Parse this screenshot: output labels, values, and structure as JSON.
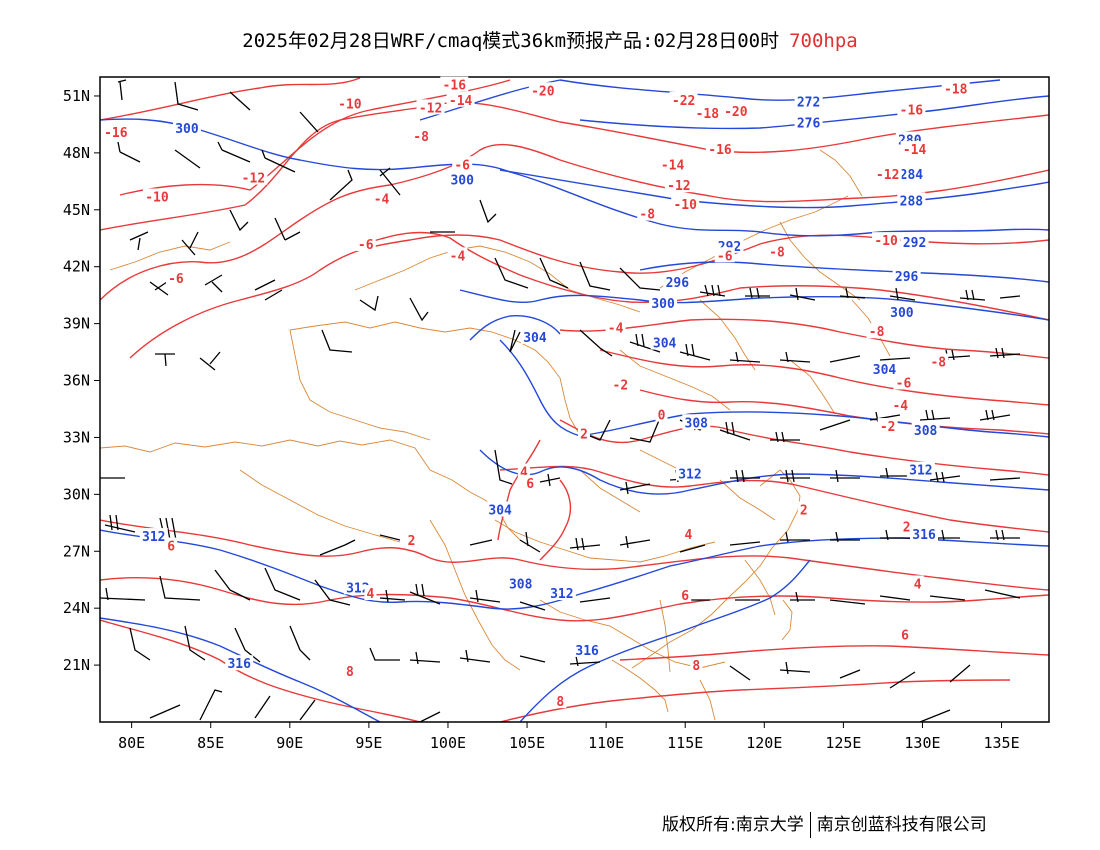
{
  "title": {
    "main": "2025年02月28日WRF/cmaq模式36km预报产品:02月28日00时",
    "level": "700hpa"
  },
  "colors": {
    "temperature": "#e8393a",
    "height": "#2448d8",
    "border": "#d9893a",
    "wind": "#000000"
  },
  "map": {
    "lon_range": [
      78,
      138
    ],
    "lat_range": [
      18,
      52
    ],
    "x_ticks": [
      "80E",
      "85E",
      "90E",
      "95E",
      "100E",
      "105E",
      "110E",
      "115E",
      "120E",
      "125E",
      "130E",
      "135E"
    ],
    "y_ticks": [
      "51N",
      "48N",
      "45N",
      "42N",
      "39N",
      "36N",
      "33N",
      "30N",
      "27N",
      "24N",
      "21N"
    ],
    "height_labels": [
      {
        "text": "300",
        "lon": 83.5,
        "lat": 49.3
      },
      {
        "text": "300",
        "lon": 100.9,
        "lat": 46.6
      },
      {
        "text": "304",
        "lon": 105.5,
        "lat": 38.3
      },
      {
        "text": "304",
        "lon": 113.7,
        "lat": 38.0
      },
      {
        "text": "300",
        "lon": 113.6,
        "lat": 40.1
      },
      {
        "text": "296",
        "lon": 114.5,
        "lat": 41.2
      },
      {
        "text": "292",
        "lon": 117.8,
        "lat": 43.1
      },
      {
        "text": "272",
        "lon": 122.8,
        "lat": 50.7
      },
      {
        "text": "276",
        "lon": 122.8,
        "lat": 49.6
      },
      {
        "text": "280",
        "lon": 129.2,
        "lat": 48.7
      },
      {
        "text": "284",
        "lon": 129.3,
        "lat": 46.9
      },
      {
        "text": "288",
        "lon": 129.3,
        "lat": 45.5
      },
      {
        "text": "292",
        "lon": 129.5,
        "lat": 43.3
      },
      {
        "text": "296",
        "lon": 129.0,
        "lat": 41.5
      },
      {
        "text": "300",
        "lon": 128.7,
        "lat": 39.6
      },
      {
        "text": "304",
        "lon": 127.6,
        "lat": 36.6
      },
      {
        "text": "308",
        "lon": 115.7,
        "lat": 33.8
      },
      {
        "text": "308",
        "lon": 130.2,
        "lat": 33.4
      },
      {
        "text": "312",
        "lon": 115.3,
        "lat": 31.1
      },
      {
        "text": "312",
        "lon": 129.9,
        "lat": 31.3
      },
      {
        "text": "316",
        "lon": 130.1,
        "lat": 27.9
      },
      {
        "text": "304",
        "lon": 103.3,
        "lat": 29.2
      },
      {
        "text": "308",
        "lon": 104.6,
        "lat": 25.3
      },
      {
        "text": "312",
        "lon": 107.2,
        "lat": 24.8
      },
      {
        "text": "312",
        "lon": 81.4,
        "lat": 27.8
      },
      {
        "text": "312",
        "lon": 94.3,
        "lat": 25.1
      },
      {
        "text": "316",
        "lon": 108.8,
        "lat": 21.8
      },
      {
        "text": "316",
        "lon": 86.8,
        "lat": 21.1
      }
    ],
    "temp_labels": [
      {
        "text": "-16",
        "lon": 79.0,
        "lat": 49.1
      },
      {
        "text": "-10",
        "lon": 93.8,
        "lat": 50.6
      },
      {
        "text": "-16",
        "lon": 100.4,
        "lat": 51.6
      },
      {
        "text": "-14",
        "lon": 100.8,
        "lat": 50.8
      },
      {
        "text": "-12",
        "lon": 98.9,
        "lat": 50.4
      },
      {
        "text": "-8",
        "lon": 98.3,
        "lat": 48.9
      },
      {
        "text": "-6",
        "lon": 100.9,
        "lat": 47.4
      },
      {
        "text": "-10",
        "lon": 81.6,
        "lat": 45.7
      },
      {
        "text": "-12",
        "lon": 87.7,
        "lat": 46.7
      },
      {
        "text": "-4",
        "lon": 95.8,
        "lat": 45.6
      },
      {
        "text": "-6",
        "lon": 94.8,
        "lat": 43.2
      },
      {
        "text": "-4",
        "lon": 100.6,
        "lat": 42.6
      },
      {
        "text": "-6",
        "lon": 82.8,
        "lat": 41.4
      },
      {
        "text": "-20",
        "lon": 106.0,
        "lat": 51.3
      },
      {
        "text": "-22",
        "lon": 114.9,
        "lat": 50.8
      },
      {
        "text": "-18",
        "lon": 116.4,
        "lat": 50.1
      },
      {
        "text": "-20",
        "lon": 118.2,
        "lat": 50.2
      },
      {
        "text": "-16",
        "lon": 117.2,
        "lat": 48.2
      },
      {
        "text": "-14",
        "lon": 114.2,
        "lat": 47.4
      },
      {
        "text": "-12",
        "lon": 114.6,
        "lat": 46.3
      },
      {
        "text": "-10",
        "lon": 115.0,
        "lat": 45.3
      },
      {
        "text": "-8",
        "lon": 112.6,
        "lat": 44.8
      },
      {
        "text": "-6",
        "lon": 117.5,
        "lat": 42.6
      },
      {
        "text": "-8",
        "lon": 120.8,
        "lat": 42.8
      },
      {
        "text": "-18",
        "lon": 132.1,
        "lat": 51.4
      },
      {
        "text": "-16",
        "lon": 129.3,
        "lat": 50.3
      },
      {
        "text": "-14",
        "lon": 129.5,
        "lat": 48.2
      },
      {
        "text": "-12",
        "lon": 127.8,
        "lat": 46.9
      },
      {
        "text": "-10",
        "lon": 127.7,
        "lat": 43.4
      },
      {
        "text": "-8",
        "lon": 127.1,
        "lat": 38.6
      },
      {
        "text": "-8",
        "lon": 131.0,
        "lat": 37.0
      },
      {
        "text": "-6",
        "lon": 128.8,
        "lat": 35.9
      },
      {
        "text": "-4",
        "lon": 128.6,
        "lat": 34.7
      },
      {
        "text": "-2",
        "lon": 127.8,
        "lat": 33.6
      },
      {
        "text": "-4",
        "lon": 110.6,
        "lat": 38.8
      },
      {
        "text": "-2",
        "lon": 110.9,
        "lat": 35.8
      },
      {
        "text": "0",
        "lon": 113.5,
        "lat": 34.2
      },
      {
        "text": "2",
        "lon": 108.6,
        "lat": 33.2
      },
      {
        "text": "4",
        "lon": 104.8,
        "lat": 31.2
      },
      {
        "text": "6",
        "lon": 105.2,
        "lat": 30.6
      },
      {
        "text": "2",
        "lon": 97.7,
        "lat": 27.6
      },
      {
        "text": "4",
        "lon": 95.1,
        "lat": 24.8
      },
      {
        "text": "6",
        "lon": 82.5,
        "lat": 27.3
      },
      {
        "text": "4",
        "lon": 115.2,
        "lat": 27.9
      },
      {
        "text": "6",
        "lon": 115.0,
        "lat": 24.7
      },
      {
        "text": "2",
        "lon": 122.5,
        "lat": 29.2
      },
      {
        "text": "2",
        "lon": 129.0,
        "lat": 28.3
      },
      {
        "text": "4",
        "lon": 129.7,
        "lat": 25.3
      },
      {
        "text": "6",
        "lon": 128.9,
        "lat": 22.6
      },
      {
        "text": "8",
        "lon": 93.8,
        "lat": 20.7
      },
      {
        "text": "8",
        "lon": 115.7,
        "lat": 21.0
      },
      {
        "text": "8",
        "lon": 107.1,
        "lat": 19.1
      }
    ]
  },
  "copyright": {
    "left": "版权所有:南京大学",
    "right": "南京创蓝科技有限公司"
  }
}
